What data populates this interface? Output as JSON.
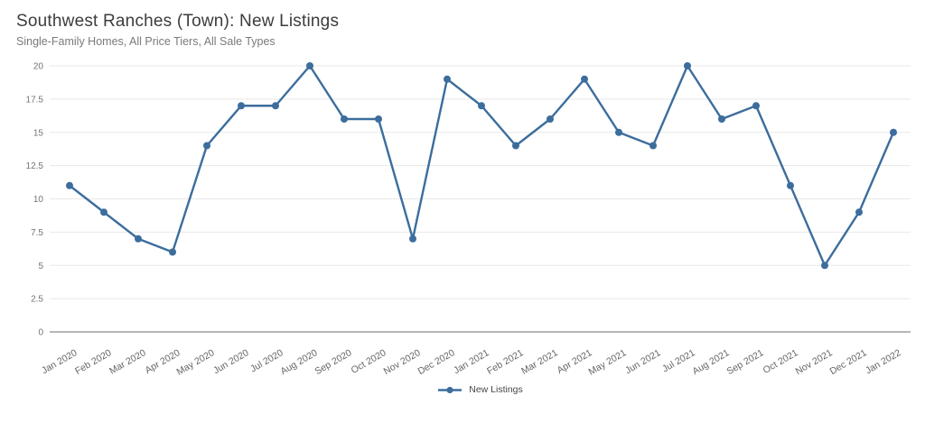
{
  "chart_data": {
    "type": "line",
    "title": "Southwest Ranches (Town): New Listings",
    "subtitle": "Single-Family Homes, All Price Tiers, All Sale Types",
    "categories": [
      "Jan 2020",
      "Feb 2020",
      "Mar 2020",
      "Apr 2020",
      "May 2020",
      "Jun 2020",
      "Jul 2020",
      "Aug 2020",
      "Sep 2020",
      "Oct 2020",
      "Nov 2020",
      "Dec 2020",
      "Jan 2021",
      "Feb 2021",
      "Mar 2021",
      "Apr 2021",
      "May 2021",
      "Jun 2021",
      "Jul 2021",
      "Aug 2021",
      "Sep 2021",
      "Oct 2021",
      "Nov 2021",
      "Dec 2021",
      "Jan 2022"
    ],
    "series": [
      {
        "name": "New Listings",
        "values": [
          11,
          9,
          7,
          6,
          14,
          17,
          17,
          20,
          16,
          16,
          7,
          19,
          17,
          14,
          16,
          19,
          15,
          14,
          20,
          16,
          17,
          11,
          5,
          9,
          15
        ]
      }
    ],
    "xlabel": "",
    "ylabel": "",
    "ylim": [
      0,
      20
    ],
    "yticks": [
      0,
      2.5,
      5,
      7.5,
      10,
      12.5,
      15,
      17.5,
      20
    ],
    "grid": "horizontal",
    "legend_position": "bottom-center",
    "colors": {
      "line": "#3c6d9d",
      "marker": "#3c6d9d",
      "gridline": "#e8e8e8",
      "axis_line": "#8a8a8a",
      "y_tick_label": "#757575",
      "x_tick_label": "#666666"
    }
  }
}
